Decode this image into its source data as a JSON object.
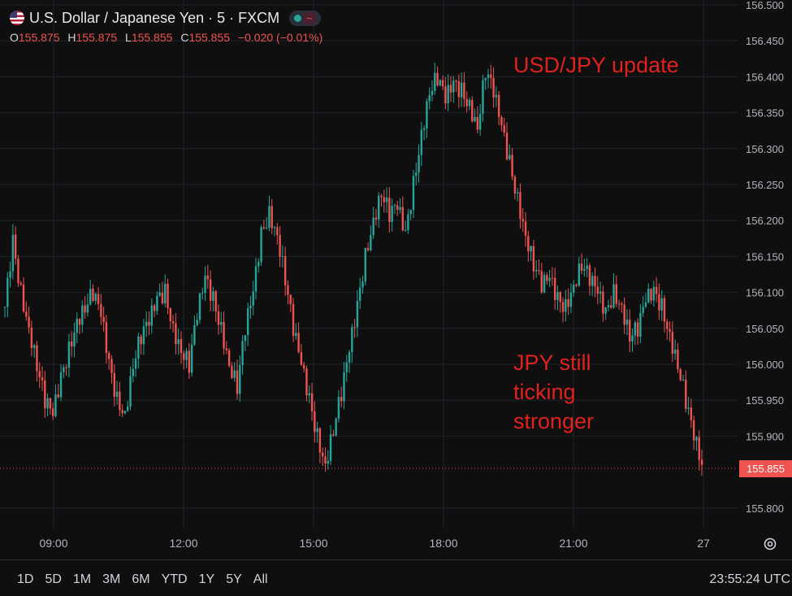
{
  "header": {
    "title": "U.S. Dollar / Japanese Yen · 5 · FXCM",
    "badge_icon": "~",
    "ohlc": {
      "o_label": "O",
      "o": "155.875",
      "h_label": "H",
      "h": "155.875",
      "l_label": "L",
      "l": "155.855",
      "c_label": "C",
      "c": "155.855",
      "change": "−0.020 (−0.01%)"
    }
  },
  "annotations": {
    "top": "USD/JPY update",
    "bottom_line1": "JPY still",
    "bottom_line2": "ticking",
    "bottom_line3": "stronger"
  },
  "last_price": "155.855",
  "timeframes": [
    "1D",
    "5D",
    "1M",
    "3M",
    "6M",
    "YTD",
    "1Y",
    "5Y",
    "All"
  ],
  "clock": "23:55:24 UTC",
  "colors": {
    "up": "#26a69a",
    "down": "#ef5350",
    "background": "#0f0f0f",
    "annotation": "#e0211d",
    "grid": "#1e222d"
  },
  "chart_data": {
    "type": "candlestick",
    "title": "U.S. Dollar / Japanese Yen · 5 · FXCM",
    "ylim": [
      155.78,
      156.5
    ],
    "y_ticks": [
      "156.500",
      "156.450",
      "156.400",
      "156.350",
      "156.300",
      "156.250",
      "156.200",
      "156.150",
      "156.100",
      "156.050",
      "156.000",
      "155.950",
      "155.900",
      "155.855",
      "155.800"
    ],
    "x_tick_labels": [
      "09:00",
      "12:00",
      "15:00",
      "18:00",
      "21:00",
      "27"
    ],
    "last_value": 155.855,
    "close_series": [
      156.08,
      156.17,
      156.1,
      156.05,
      156.0,
      155.95,
      155.93,
      155.98,
      156.02,
      156.06,
      156.08,
      156.1,
      156.07,
      156.0,
      155.95,
      155.93,
      156.0,
      156.04,
      156.06,
      156.09,
      156.1,
      156.05,
      156.02,
      156.0,
      156.07,
      156.12,
      156.09,
      156.05,
      156.0,
      155.97,
      156.05,
      156.1,
      156.18,
      156.21,
      156.18,
      156.12,
      156.05,
      156.0,
      155.95,
      155.9,
      155.86,
      155.91,
      155.96,
      156.02,
      156.08,
      156.15,
      156.2,
      156.24,
      156.21,
      156.22,
      156.18,
      156.25,
      156.32,
      156.38,
      156.4,
      156.37,
      156.39,
      156.38,
      156.36,
      156.33,
      156.41,
      156.38,
      156.33,
      156.28,
      156.23,
      156.18,
      156.14,
      156.11,
      156.12,
      156.09,
      156.08,
      156.11,
      156.14,
      156.12,
      156.1,
      156.07,
      156.1,
      156.08,
      156.04,
      156.05,
      156.09,
      156.1,
      156.08,
      156.04,
      156.0,
      155.95,
      155.9,
      155.86
    ]
  }
}
